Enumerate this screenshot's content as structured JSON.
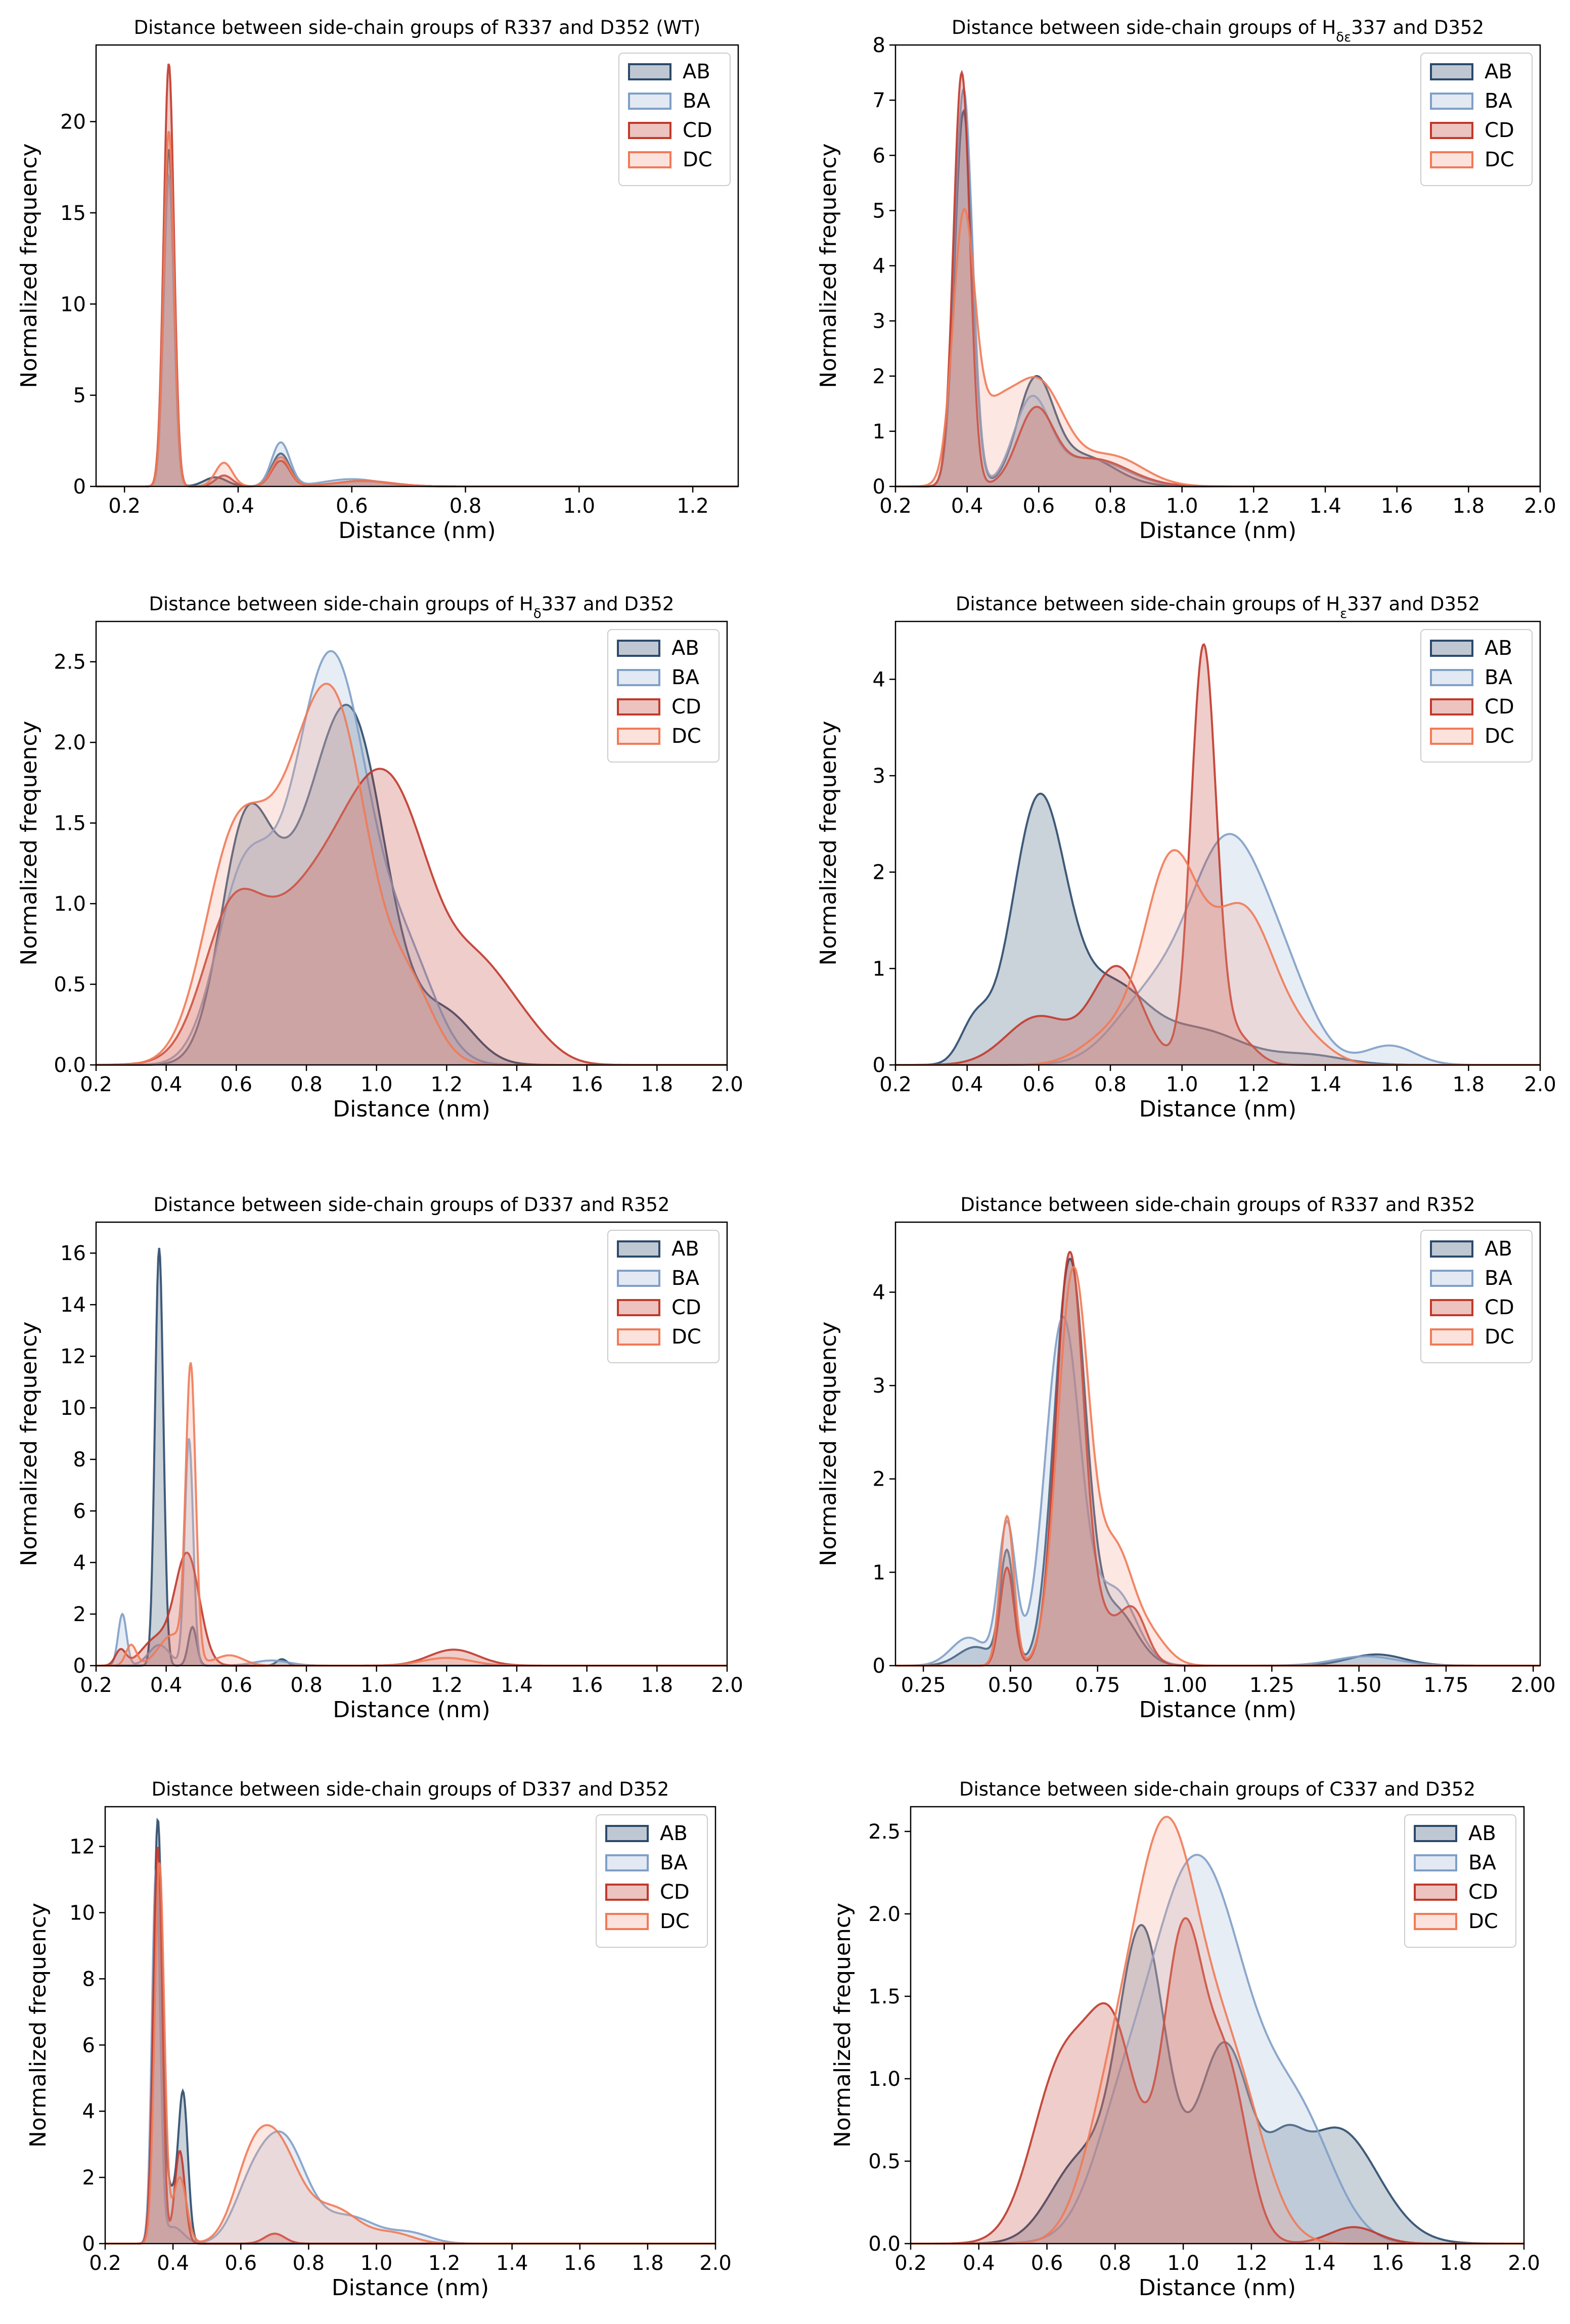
{
  "series_colors": {
    "AB": {
      "stroke": "#2b4a6b",
      "fill": "#2b4a6b"
    },
    "BA": {
      "stroke": "#7f9fc7",
      "fill": "#9fb6d8"
    },
    "CD": {
      "stroke": "#c0392b",
      "fill": "#c0392b"
    },
    "DC": {
      "stroke": "#f07a57",
      "fill": "#f4a08a"
    }
  },
  "chart_data": [
    {
      "type": "area",
      "title": "Distance between side-chain groups of R337 and D352 (WT)",
      "xlabel": "Distance (nm)",
      "ylabel": "Normalized frequency",
      "xlim": [
        0.15,
        1.28
      ],
      "ylim": [
        0,
        24.2
      ],
      "xticks": [
        "0.2",
        "0.4",
        "0.6",
        "0.8",
        "1.0",
        "1.2"
      ],
      "yticks": [
        "0",
        "5",
        "10",
        "15",
        "20"
      ],
      "legend_position": "top-right",
      "series": [
        {
          "name": "AB",
          "peaks": [
            [
              0.278,
              18.5,
              0.009
            ],
            [
              0.475,
              1.8,
              0.016
            ],
            [
              0.36,
              0.5,
              0.02
            ],
            [
              0.62,
              0.3,
              0.05
            ]
          ]
        },
        {
          "name": "BA",
          "peaks": [
            [
              0.278,
              17.0,
              0.009
            ],
            [
              0.475,
              2.4,
              0.016
            ],
            [
              0.6,
              0.4,
              0.05
            ]
          ]
        },
        {
          "name": "CD",
          "peaks": [
            [
              0.278,
              23.2,
              0.009
            ],
            [
              0.475,
              1.4,
              0.016
            ],
            [
              0.375,
              0.6,
              0.015
            ],
            [
              0.62,
              0.3,
              0.05
            ]
          ]
        },
        {
          "name": "DC",
          "peaks": [
            [
              0.278,
              19.5,
              0.009
            ],
            [
              0.475,
              1.6,
              0.016
            ],
            [
              0.375,
              1.3,
              0.015
            ],
            [
              0.62,
              0.3,
              0.05
            ]
          ]
        }
      ]
    },
    {
      "type": "area",
      "title": "Distance between side-chain groups of Hδε337 and D352",
      "title_parts": {
        "before": "Distance between side-chain groups of H",
        "sub": "δε",
        "after": "337 and D352"
      },
      "xlabel": "Distance (nm)",
      "ylabel": "Normalized frequency",
      "xlim": [
        0.2,
        2.0
      ],
      "ylim": [
        0,
        8
      ],
      "xticks": [
        "0.2",
        "0.4",
        "0.6",
        "0.8",
        "1.0",
        "1.2",
        "1.4",
        "1.6",
        "1.8",
        "2.0"
      ],
      "yticks": [
        "0",
        "1",
        "2",
        "3",
        "4",
        "5",
        "6",
        "7",
        "8"
      ],
      "legend_position": "top-right",
      "series": [
        {
          "name": "AB",
          "peaks": [
            [
              0.39,
              6.8,
              0.025
            ],
            [
              0.59,
              1.8,
              0.05
            ],
            [
              0.72,
              0.55,
              0.09
            ]
          ]
        },
        {
          "name": "BA",
          "peaks": [
            [
              0.39,
              7.2,
              0.025
            ],
            [
              0.58,
              1.5,
              0.05
            ],
            [
              0.74,
              0.5,
              0.1
            ]
          ]
        },
        {
          "name": "CD",
          "peaks": [
            [
              0.385,
              7.5,
              0.023
            ],
            [
              0.59,
              1.3,
              0.05
            ],
            [
              0.75,
              0.5,
              0.1
            ]
          ]
        },
        {
          "name": "DC",
          "peaks": [
            [
              0.39,
              4.5,
              0.03
            ],
            [
              0.47,
              1.2,
              0.06
            ],
            [
              0.6,
              1.8,
              0.07
            ],
            [
              0.8,
              0.55,
              0.09
            ]
          ]
        }
      ]
    },
    {
      "type": "area",
      "title": "Distance between side-chain groups of Hδ337 and D352",
      "title_parts": {
        "before": "Distance between side-chain groups of H",
        "sub": "δ",
        "after": "337 and D352"
      },
      "xlabel": "Distance (nm)",
      "ylabel": "Normalized frequency",
      "xlim": [
        0.2,
        2.0
      ],
      "ylim": [
        0,
        2.75
      ],
      "xticks": [
        "0.2",
        "0.4",
        "0.6",
        "0.8",
        "1.0",
        "1.2",
        "1.4",
        "1.6",
        "1.8",
        "2.0"
      ],
      "yticks": [
        "0.0",
        "0.5",
        "1.0",
        "1.5",
        "2.0",
        "2.5"
      ],
      "legend_position": "top-right",
      "series": [
        {
          "name": "AB",
          "peaks": [
            [
              0.62,
              1.2,
              0.07
            ],
            [
              0.93,
              2.05,
              0.1
            ],
            [
              0.75,
              0.8,
              0.1
            ],
            [
              1.2,
              0.3,
              0.08
            ]
          ]
        },
        {
          "name": "BA",
          "peaks": [
            [
              0.62,
              1.1,
              0.08
            ],
            [
              0.87,
              2.55,
              0.11
            ],
            [
              1.1,
              0.5,
              0.08
            ]
          ]
        },
        {
          "name": "CD",
          "peaks": [
            [
              0.58,
              0.65,
              0.08
            ],
            [
              0.78,
              0.9,
              0.15
            ],
            [
              1.04,
              1.6,
              0.13
            ],
            [
              1.3,
              0.4,
              0.08
            ],
            [
              1.42,
              0.2,
              0.08
            ]
          ]
        },
        {
          "name": "DC",
          "peaks": [
            [
              0.6,
              1.4,
              0.09
            ],
            [
              0.88,
              2.15,
              0.1
            ],
            [
              0.75,
              0.6,
              0.08
            ],
            [
              1.1,
              0.4,
              0.07
            ]
          ]
        }
      ]
    },
    {
      "type": "area",
      "title": "Distance between side-chain groups of Hε337 and D352",
      "title_parts": {
        "before": "Distance between side-chain groups of H",
        "sub": "ε",
        "after": "337 and D352"
      },
      "xlabel": "Distance (nm)",
      "ylabel": "Normalized frequency",
      "xlim": [
        0.2,
        2.0
      ],
      "ylim": [
        0,
        4.6
      ],
      "xticks": [
        "0.2",
        "0.4",
        "0.6",
        "0.8",
        "1.0",
        "1.2",
        "1.4",
        "1.6",
        "1.8",
        "2.0"
      ],
      "yticks": [
        "0",
        "1",
        "2",
        "3",
        "4"
      ],
      "legend_position": "top-right",
      "series": [
        {
          "name": "AB",
          "peaks": [
            [
              0.6,
              2.7,
              0.075
            ],
            [
              0.42,
              0.4,
              0.04
            ],
            [
              0.8,
              0.8,
              0.1
            ],
            [
              1.05,
              0.35,
              0.12
            ],
            [
              1.35,
              0.1,
              0.1
            ]
          ]
        },
        {
          "name": "BA",
          "peaks": [
            [
              1.13,
              2.3,
              0.11
            ],
            [
              0.9,
              0.6,
              0.1
            ],
            [
              1.58,
              0.2,
              0.07
            ],
            [
              1.3,
              0.5,
              0.08
            ]
          ]
        },
        {
          "name": "CD",
          "peaks": [
            [
              1.06,
              4.3,
              0.035
            ],
            [
              0.82,
              1.0,
              0.07
            ],
            [
              0.6,
              0.5,
              0.09
            ],
            [
              1.15,
              0.3,
              0.05
            ]
          ]
        },
        {
          "name": "DC",
          "peaks": [
            [
              0.97,
              2.05,
              0.075
            ],
            [
              1.17,
              1.6,
              0.09
            ],
            [
              0.8,
              0.3,
              0.08
            ],
            [
              1.35,
              0.2,
              0.07
            ]
          ]
        }
      ]
    },
    {
      "type": "area",
      "title": "Distance between side-chain groups of D337 and R352",
      "xlabel": "Distance (nm)",
      "ylabel": "Normalized frequency",
      "xlim": [
        0.2,
        2.0
      ],
      "ylim": [
        0,
        17.2
      ],
      "xticks": [
        "0.2",
        "0.4",
        "0.6",
        "0.8",
        "1.0",
        "1.2",
        "1.4",
        "1.6",
        "1.8",
        "2.0"
      ],
      "yticks": [
        "0",
        "2",
        "4",
        "6",
        "8",
        "10",
        "12",
        "14",
        "16"
      ],
      "legend_position": "top-right",
      "series": [
        {
          "name": "AB",
          "peaks": [
            [
              0.38,
              16.2,
              0.012
            ],
            [
              0.475,
              1.5,
              0.012
            ],
            [
              0.73,
              0.25,
              0.015
            ]
          ]
        },
        {
          "name": "BA",
          "peaks": [
            [
              0.275,
              2.0,
              0.012
            ],
            [
              0.465,
              8.8,
              0.012
            ],
            [
              0.38,
              0.8,
              0.03
            ],
            [
              0.7,
              0.2,
              0.05
            ]
          ]
        },
        {
          "name": "CD",
          "peaks": [
            [
              0.46,
              4.3,
              0.035
            ],
            [
              0.37,
              1.0,
              0.04
            ],
            [
              0.27,
              0.6,
              0.015
            ],
            [
              1.22,
              0.62,
              0.07
            ]
          ]
        },
        {
          "name": "DC",
          "peaks": [
            [
              0.47,
              11.2,
              0.014
            ],
            [
              0.42,
              1.2,
              0.04
            ],
            [
              0.3,
              0.8,
              0.015
            ],
            [
              0.58,
              0.4,
              0.04
            ],
            [
              1.2,
              0.3,
              0.07
            ]
          ]
        }
      ]
    },
    {
      "type": "area",
      "title": "Distance between side-chain groups of R337 and R352",
      "xlabel": "Distance (nm)",
      "ylabel": "Normalized frequency",
      "xlim": [
        0.17,
        2.02
      ],
      "ylim": [
        0,
        4.75
      ],
      "xticks": [
        "0.25",
        "0.50",
        "0.75",
        "1.00",
        "1.25",
        "1.50",
        "1.75",
        "2.00"
      ],
      "yticks": [
        "0",
        "1",
        "2",
        "3",
        "4"
      ],
      "legend_position": "top-right",
      "series": [
        {
          "name": "AB",
          "peaks": [
            [
              0.49,
              1.2,
              0.02
            ],
            [
              0.67,
              4.3,
              0.045
            ],
            [
              0.8,
              0.6,
              0.06
            ],
            [
              0.4,
              0.2,
              0.05
            ],
            [
              1.55,
              0.12,
              0.08
            ]
          ]
        },
        {
          "name": "BA",
          "peaks": [
            [
              0.49,
              1.5,
              0.025
            ],
            [
              0.65,
              3.7,
              0.05
            ],
            [
              0.8,
              0.8,
              0.06
            ],
            [
              0.38,
              0.3,
              0.05
            ],
            [
              1.52,
              0.1,
              0.09
            ]
          ]
        },
        {
          "name": "CD",
          "peaks": [
            [
              0.49,
              1.05,
              0.02
            ],
            [
              0.67,
              4.4,
              0.04
            ],
            [
              0.85,
              0.6,
              0.04
            ],
            [
              0.76,
              0.4,
              0.04
            ]
          ]
        },
        {
          "name": "DC",
          "peaks": [
            [
              0.49,
              1.6,
              0.02
            ],
            [
              0.68,
              4.2,
              0.045
            ],
            [
              0.8,
              1.2,
              0.05
            ],
            [
              0.9,
              0.3,
              0.05
            ]
          ]
        }
      ]
    },
    {
      "type": "area",
      "title": "Distance between side-chain groups of D337 and D352",
      "xlabel": "Distance (nm)",
      "ylabel": "Normalized frequency",
      "xlim": [
        0.2,
        2.0
      ],
      "ylim": [
        0,
        13.2
      ],
      "xticks": [
        "0.2",
        "0.4",
        "0.6",
        "0.8",
        "1.0",
        "1.2",
        "1.4",
        "1.6",
        "1.8",
        "2.0"
      ],
      "yticks": [
        "0",
        "2",
        "4",
        "6",
        "8",
        "10",
        "12"
      ],
      "legend_position": "top-right",
      "series": [
        {
          "name": "AB",
          "peaks": [
            [
              0.355,
              12.5,
              0.013
            ],
            [
              0.43,
              4.4,
              0.014
            ],
            [
              0.39,
              1.5,
              0.02
            ]
          ]
        },
        {
          "name": "BA",
          "peaks": [
            [
              0.35,
              11.2,
              0.012
            ],
            [
              0.4,
              0.5,
              0.03
            ],
            [
              0.72,
              3.2,
              0.07
            ],
            [
              0.62,
              1.0,
              0.05
            ],
            [
              0.92,
              0.8,
              0.08
            ],
            [
              1.1,
              0.3,
              0.06
            ]
          ]
        },
        {
          "name": "CD",
          "peaks": [
            [
              0.355,
              12.0,
              0.013
            ],
            [
              0.42,
              2.8,
              0.015
            ],
            [
              0.7,
              0.3,
              0.03
            ]
          ]
        },
        {
          "name": "DC",
          "peaks": [
            [
              0.36,
              11.5,
              0.014
            ],
            [
              0.42,
              2.0,
              0.02
            ],
            [
              0.7,
              3.1,
              0.07
            ],
            [
              0.62,
              1.2,
              0.05
            ],
            [
              0.88,
              1.0,
              0.07
            ],
            [
              1.05,
              0.3,
              0.06
            ]
          ]
        }
      ]
    },
    {
      "type": "area",
      "title": "Distance between side-chain groups of C337 and D352",
      "xlabel": "Distance (nm)",
      "ylabel": "Normalized frequency",
      "xlim": [
        0.2,
        2.0
      ],
      "ylim": [
        0,
        2.65
      ],
      "xticks": [
        "0.2",
        "0.4",
        "0.6",
        "0.8",
        "1.0",
        "1.2",
        "1.4",
        "1.6",
        "1.8",
        "2.0"
      ],
      "yticks": [
        "0.0",
        "0.5",
        "1.0",
        "1.5",
        "2.0",
        "2.5"
      ],
      "legend_position": "top-right",
      "series": [
        {
          "name": "AB",
          "peaks": [
            [
              0.88,
              1.85,
              0.07
            ],
            [
              1.12,
              1.2,
              0.08
            ],
            [
              1.45,
              0.7,
              0.12
            ],
            [
              0.7,
              0.5,
              0.09
            ],
            [
              1.3,
              0.3,
              0.05
            ]
          ]
        },
        {
          "name": "BA",
          "peaks": [
            [
              1.04,
              2.35,
              0.15
            ],
            [
              1.35,
              0.6,
              0.1
            ],
            [
              0.8,
              0.3,
              0.08
            ]
          ]
        },
        {
          "name": "CD",
          "peaks": [
            [
              0.65,
              1.1,
              0.09
            ],
            [
              0.8,
              1.1,
              0.07
            ],
            [
              1.0,
              1.85,
              0.06
            ],
            [
              1.13,
              1.0,
              0.06
            ],
            [
              1.5,
              0.1,
              0.07
            ]
          ]
        },
        {
          "name": "DC",
          "peaks": [
            [
              0.95,
              2.45,
              0.1
            ],
            [
              0.78,
              0.6,
              0.08
            ],
            [
              1.15,
              0.9,
              0.09
            ]
          ]
        }
      ]
    }
  ]
}
